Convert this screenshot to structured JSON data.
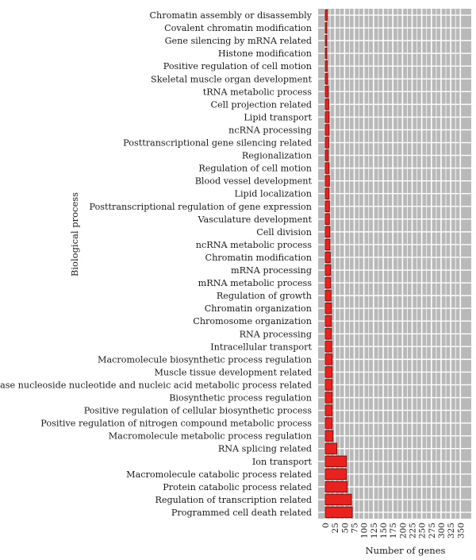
{
  "chart_data": {
    "type": "bar",
    "orientation": "horizontal",
    "categories": [
      "Chromatin assembly or disassembly",
      "Covalent chromatin modification",
      "Gene silencing by mRNA related",
      "Histone modification",
      "Positive regulation of cell motion",
      "Skeletal muscle organ development",
      "tRNA metabolic process",
      "Cell projection related",
      "Lipid transport",
      "ncRNA processing",
      "Posttranscriptional gene silencing related",
      "Regionalization",
      "Regulation of cell motion",
      "Blood vessel development",
      "Lipid localization",
      "Posttranscriptional regulation of gene expression",
      "Vasculature development",
      "Cell division",
      "ncRNA metabolic process",
      "Chromatin modification",
      "mRNA processing",
      "mRNA metabolic process",
      "Regulation of growth",
      "Chromatin organization",
      "Chromosome organization",
      "RNA processing",
      "Intracellular transport",
      "Macromolecule biosynthetic process regulation",
      "Muscle tissue development related",
      "Nucleobase nucleoside nucleotide and nucleic acid metabolic process related",
      "Biosynthetic process regulation",
      "Positive regulation of cellular biosynthetic process",
      "Positive regulation of nitrogen compound metabolic process",
      "Macromolecule metabolic process regulation",
      "RNA splicing related",
      "Ion transport",
      "Macromolecule catabolic process related",
      "Protein catabolic process related",
      "Regulation of transcription related",
      "Programmed cell death related"
    ],
    "values": [
      5,
      4,
      4,
      4,
      5,
      6,
      8,
      9,
      10,
      10,
      9,
      8,
      10,
      11,
      10,
      11,
      11,
      12,
      12,
      13,
      14,
      14,
      15,
      16,
      16,
      16,
      17,
      18,
      18,
      18,
      18,
      18,
      18,
      20,
      30,
      55,
      55,
      57,
      68,
      70
    ],
    "xlabel": "Number of genes",
    "ylabel": "Biological process",
    "xticks": [
      "0",
      "25",
      "50",
      "75",
      "100",
      "125",
      "150",
      "175",
      "200",
      "225",
      "250",
      "275",
      "300",
      "325",
      "350"
    ],
    "xlim": [
      0,
      362
    ],
    "grid": true,
    "colors": {
      "bar_fill": "#e8231f",
      "bar_stroke": "#7a0a08",
      "panel_bg": "#b9b9b9",
      "grid": "#ffffff"
    }
  }
}
